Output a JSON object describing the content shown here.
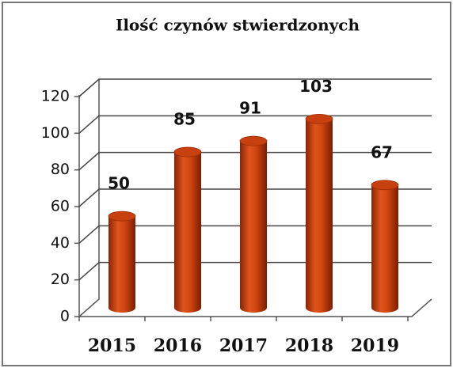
{
  "chart_data": {
    "type": "bar",
    "title": "Ilość czynów stwierdzonych",
    "categories": [
      "2015",
      "2016",
      "2017",
      "2018",
      "2019"
    ],
    "values": [
      50,
      85,
      91,
      103,
      67
    ],
    "color": "#c8400f",
    "ylim": [
      0,
      120
    ],
    "yticks": [
      0,
      20,
      40,
      60,
      80,
      100,
      120
    ],
    "grid": true
  }
}
